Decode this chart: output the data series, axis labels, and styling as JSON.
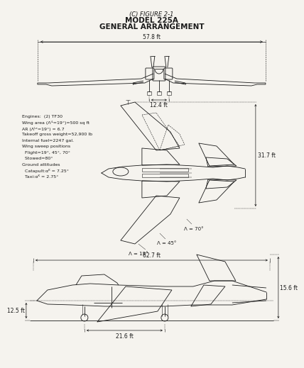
{
  "title_line1": "(C) FIGURE 2-1",
  "title_line2": "MODEL 225A",
  "title_line3": "GENERAL ARRANGEMENT",
  "bg_color": "#f5f3ee",
  "line_color": "#1a1a1a",
  "dim_color": "#1a1a1a",
  "specs": [
    "Engines:  (2) TF30",
    "Wing area (Λⁱᴸ=19°)=500 sq ft",
    "AR (Λᴸᵉ=19°) = 6.7",
    "Takeoff gross weight=52,900 lb",
    "Internal fuel=2247 gal.",
    "Wing sweep positions",
    "  Flight=19°, 45°, 70°",
    "  Stowed=80°",
    "Ground attitudes",
    "  Catapult:αᴷ = 7.25°",
    "  Taxi:αᴷ = 2.75°"
  ],
  "dim_57p8": "57.8 ft",
  "dim_12p4": "12.4 ft",
  "dim_31p7": "31.7 ft",
  "dim_62p7": "62.7 ft",
  "dim_12p5": "12.5 ft",
  "dim_15p6": "15.6 ft",
  "dim_21p6": "21.6 ft",
  "sweep_19": "Λ = 19°",
  "sweep_45": "Λ = 45°",
  "sweep_70": "Λ = 70°"
}
